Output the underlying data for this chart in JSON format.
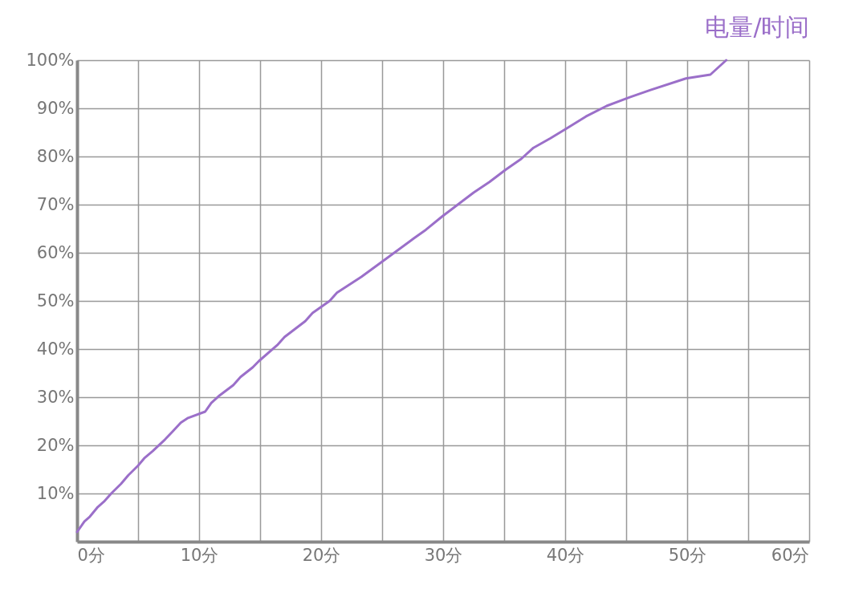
{
  "chart_data": {
    "type": "line",
    "title": "电量/时间",
    "x": [
      0,
      0.6,
      1.05,
      1.7,
      2.2,
      2.8,
      3.6,
      4.2,
      5,
      5.5,
      6.2,
      7.2,
      7.8,
      8.5,
      9.1,
      10.5,
      11,
      11.6,
      12.8,
      13.4,
      14.4,
      14.9,
      16.4,
      17,
      18.7,
      19.3,
      20.7,
      21.3,
      23.3,
      25.3,
      27.6,
      28.6,
      29.9,
      31.2,
      32.5,
      33.8,
      35.1,
      36.4,
      37.4,
      38.8,
      40.1,
      41.7,
      43.4,
      45.3,
      47,
      49.9,
      51.9,
      53.2
    ],
    "series": [
      {
        "color": "#9b6fc9",
        "values": [
          2,
          4.2,
          5.2,
          7.2,
          8.3,
          10,
          12,
          13.8,
          15.8,
          17.3,
          18.8,
          21.2,
          22.8,
          24.7,
          25.7,
          27,
          28.8,
          30.2,
          32.5,
          34.2,
          36.2,
          37.5,
          40.8,
          42.5,
          45.8,
          47.5,
          50,
          51.7,
          55,
          58.7,
          63,
          64.8,
          67.5,
          70,
          72.5,
          74.7,
          77.2,
          79.5,
          81.8,
          83.8,
          85.8,
          88.3,
          90.5,
          92.3,
          93.8,
          96.2,
          97,
          100
        ]
      }
    ],
    "xlim": [
      0,
      60
    ],
    "xticks": [
      {
        "value": 0,
        "label": "0分"
      },
      {
        "value": 5,
        "label": null
      },
      {
        "value": 10,
        "label": "10分"
      },
      {
        "value": 15,
        "label": null
      },
      {
        "value": 20,
        "label": "20分"
      },
      {
        "value": 25,
        "label": null
      },
      {
        "value": 30,
        "label": "30分"
      },
      {
        "value": 35,
        "label": null
      },
      {
        "value": 40,
        "label": "40分"
      },
      {
        "value": 45,
        "label": null
      },
      {
        "value": 50,
        "label": "50分"
      },
      {
        "value": 55,
        "label": null
      },
      {
        "value": 60,
        "label": "60分"
      }
    ],
    "ylim": [
      0,
      100
    ],
    "yticks": [
      {
        "value": 10,
        "label": "10%"
      },
      {
        "value": 20,
        "label": "20%"
      },
      {
        "value": 30,
        "label": "30%"
      },
      {
        "value": 40,
        "label": "40%"
      },
      {
        "value": 50,
        "label": "50%"
      },
      {
        "value": 60,
        "label": "60%"
      },
      {
        "value": 70,
        "label": "70%"
      },
      {
        "value": 80,
        "label": "80%"
      },
      {
        "value": 90,
        "label": "90%"
      },
      {
        "value": 100,
        "label": "100%"
      }
    ],
    "grid": true,
    "marker": "none",
    "line_style": "solid"
  }
}
